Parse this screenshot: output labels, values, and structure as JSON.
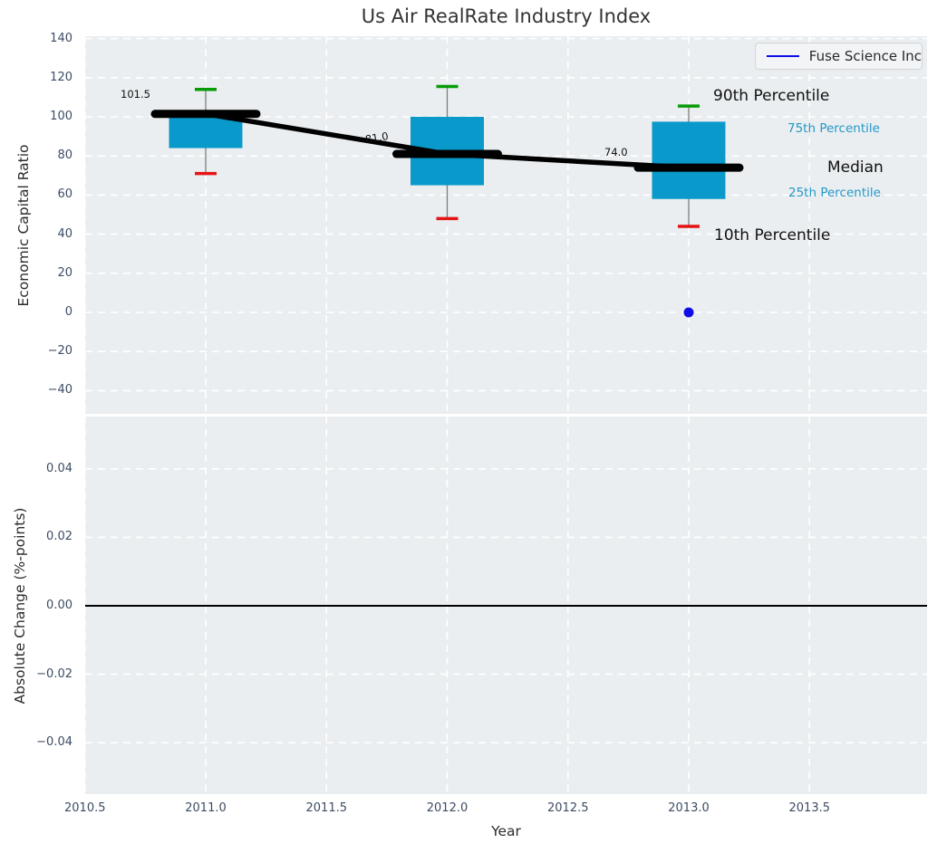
{
  "title": "Us Air RealRate Industry Index",
  "legend": {
    "label": "Fuse Science Inc"
  },
  "colors": {
    "panel_background": "#eaeef0",
    "gridline": "#ffffff",
    "box_fill": "#0999ca",
    "cap_high": "#089b08",
    "cap_low": "#e41414",
    "whisker": "#7a7a7a",
    "median_and_trend": "#000000",
    "point_blue": "#0f0fe6",
    "tick_label": "#3d4c63",
    "percentile_label_small": "#2598c8"
  },
  "chart_data": [
    {
      "type": "boxplot",
      "panel": "top",
      "title": "Us Air RealRate Industry Index",
      "xlabel": "Year",
      "ylabel": "Economic Capital Ratio",
      "grid": true,
      "legend_position": "upper right",
      "xlim": [
        2010.5,
        2013.99
      ],
      "ylim": [
        -51,
        142
      ],
      "x_tick_values": [
        2010.5,
        2011.0,
        2011.5,
        2012.0,
        2012.5,
        2013.0,
        2013.5
      ],
      "x_tick_labels": [
        "2010.5",
        "2011.0",
        "2011.5",
        "2012.0",
        "2012.5",
        "2013.0",
        "2013.5"
      ],
      "y_tick_values": [
        140,
        120,
        100,
        80,
        60,
        40,
        20,
        0,
        -20,
        -40
      ],
      "y_tick_labels": [
        "140",
        "120",
        "100",
        "80",
        "60",
        "40",
        "20",
        "0",
        "−20",
        "−40"
      ],
      "boxes": [
        {
          "x": 2011,
          "p90": 114.0,
          "p75": 100.0,
          "median": 101.5,
          "p25": 84.0,
          "p10": 71.0,
          "label": "101.5"
        },
        {
          "x": 2012,
          "p90": 115.5,
          "p75": 100.0,
          "median": 81.0,
          "p25": 65.0,
          "p10": 48.0,
          "label": "81.0"
        },
        {
          "x": 2013,
          "p90": 105.5,
          "p75": 97.5,
          "median": 74.0,
          "p25": 58.0,
          "p10": 44.0,
          "label": "74.0"
        }
      ],
      "trend_series": {
        "name": "Median",
        "x": [
          2011,
          2012,
          2013
        ],
        "y": [
          101.5,
          81.0,
          74.0
        ]
      },
      "point_series": {
        "name": "Fuse Science Inc",
        "x": [
          2013
        ],
        "y": [
          0
        ]
      },
      "annotations": {
        "p90": "90th Percentile",
        "p75": "75th Percentile",
        "median": "Median",
        "p25": "25th Percentile",
        "p10": "10th Percentile"
      }
    },
    {
      "type": "line",
      "panel": "bottom",
      "ylabel": "Absolute Change (%-points)",
      "grid": true,
      "ylim": [
        -0.055,
        0.055
      ],
      "y_tick_values": [
        0.04,
        0.02,
        0.0,
        -0.02,
        -0.04
      ],
      "y_tick_labels": [
        "0.04",
        "0.02",
        "0.00",
        "−0.02",
        "−0.04"
      ],
      "zero_line": 0.0,
      "data_points": []
    }
  ]
}
